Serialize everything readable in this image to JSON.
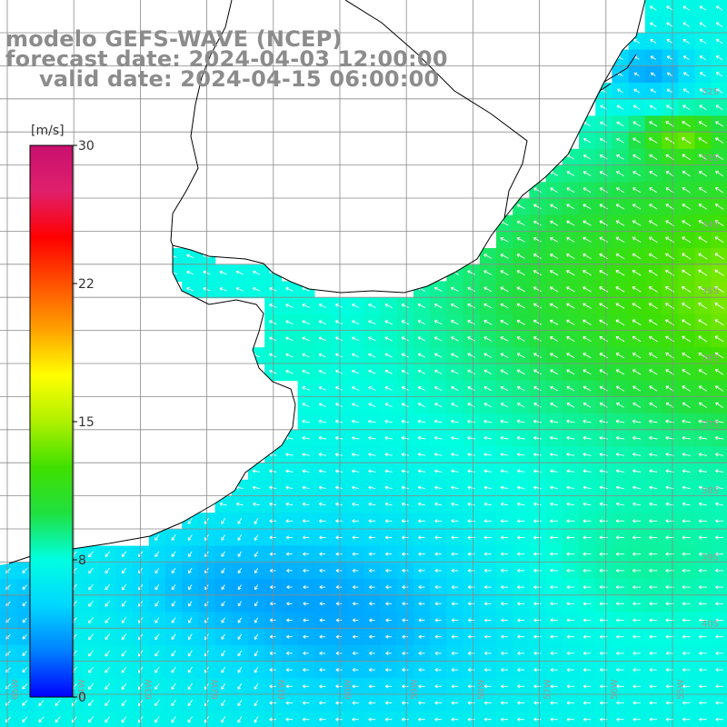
{
  "header": {
    "model": "modelo GEFS-WAVE (NCEP)",
    "forecast": "forecast date: 2024-04-03 12:00:00",
    "valid": "valid date: 2024-04-15 06:00:00"
  },
  "colorbar": {
    "units": "[m/s]",
    "min": 0,
    "max": 30,
    "ticks": [
      {
        "value": 30,
        "label": "30"
      },
      {
        "value": 22,
        "label": "22"
      },
      {
        "value": 15,
        "label": "15"
      },
      {
        "value": 8,
        "label": "8"
      },
      {
        "value": 0,
        "label": "0"
      }
    ],
    "colors": [
      "#0000ff",
      "#0080ff",
      "#00d8ff",
      "#00ffe0",
      "#20e040",
      "#40e000",
      "#b0f000",
      "#ffff00",
      "#ffa000",
      "#ff5000",
      "#ff0000",
      "#e0206c",
      "#c8106e"
    ]
  },
  "map": {
    "lat_labels": [
      "32S",
      "33S",
      "34S",
      "35S",
      "36S",
      "37S",
      "38S",
      "39S",
      "40S"
    ],
    "lon_labels": [
      "65W",
      "64W",
      "63W",
      "62W",
      "61W",
      "60W",
      "59W",
      "58W",
      "57W",
      "56W",
      "55W"
    ],
    "ocean_color_dominant": "#00c8ff",
    "land_color": "#ffffff",
    "coast_color": "#000000",
    "grid_color": "#9a9a9a",
    "arrow_color": "#ffffff"
  }
}
